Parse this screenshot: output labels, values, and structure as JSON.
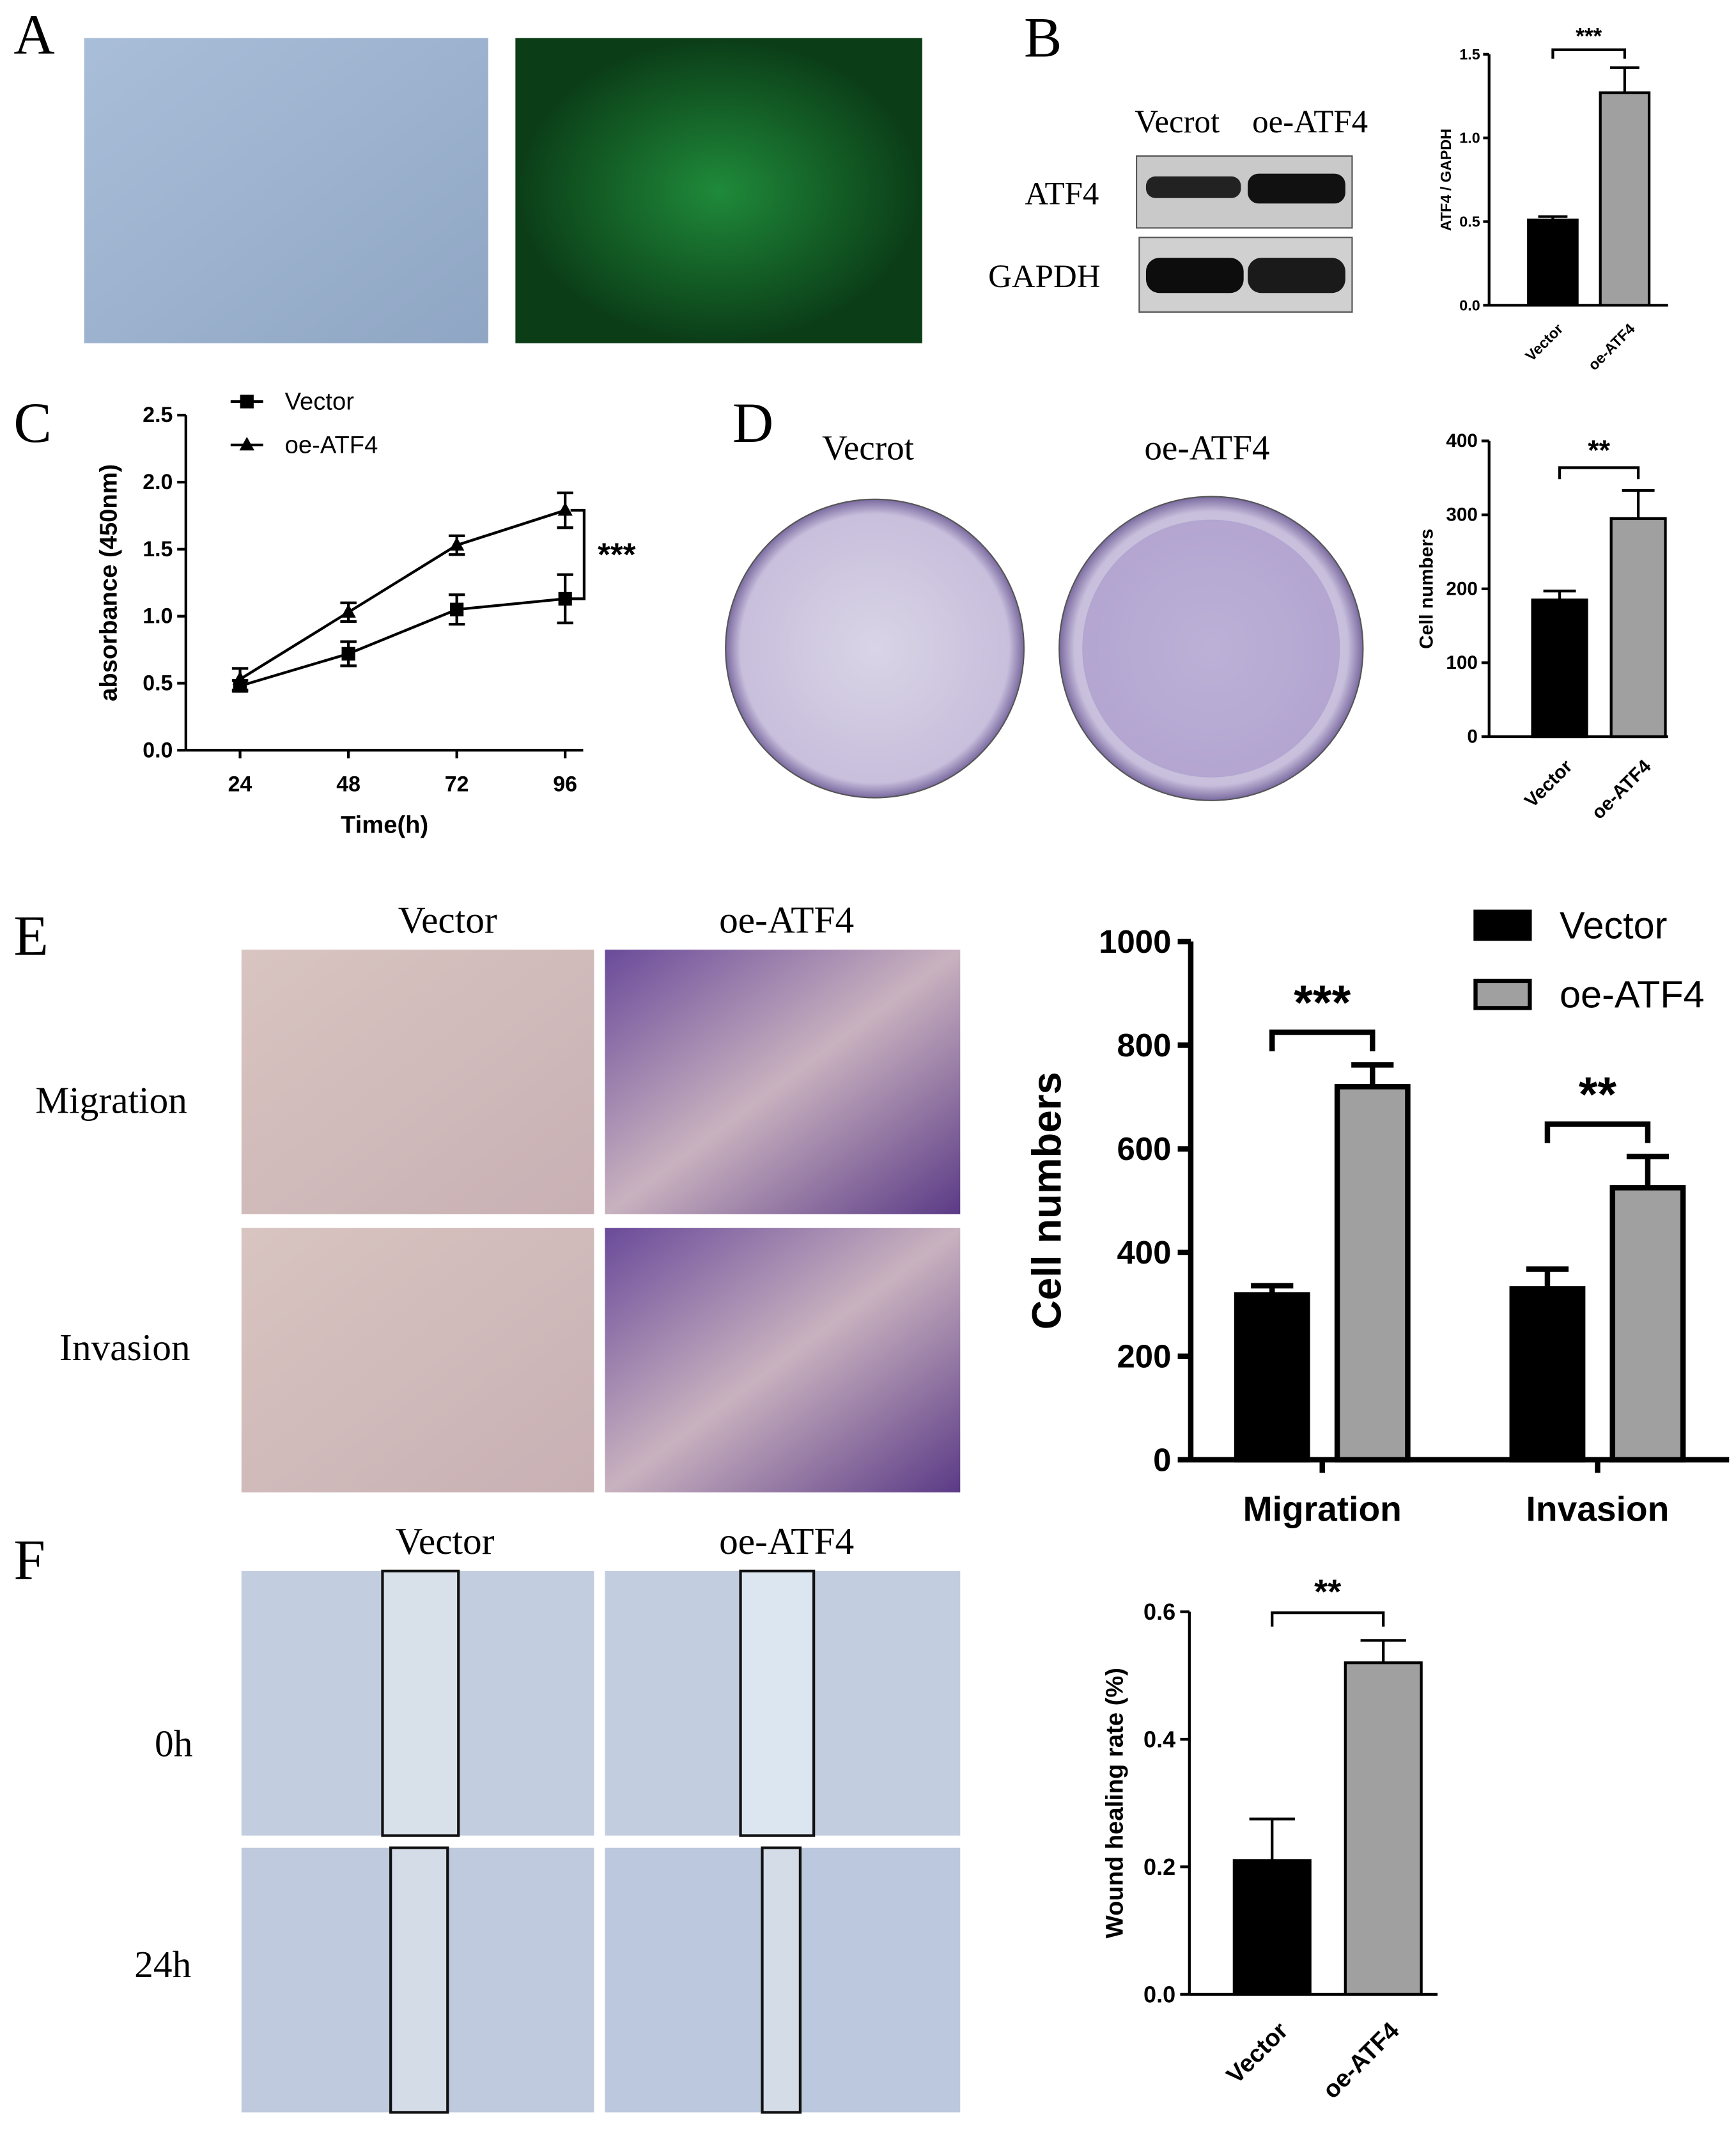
{
  "figure": {
    "panel_letters": [
      "A",
      "B",
      "C",
      "D",
      "E",
      "F"
    ],
    "B": {
      "columns": [
        "Vecrot",
        "oe-ATF4"
      ],
      "rows": [
        "ATF4",
        "GAPDH"
      ]
    },
    "D": {
      "columns": [
        "Vecrot",
        "oe-ATF4"
      ]
    },
    "E": {
      "columns": [
        "Vector",
        "oe-ATF4"
      ],
      "rows": [
        "Migration",
        "Invasion"
      ]
    },
    "F": {
      "columns": [
        "Vector",
        "oe-ATF4"
      ],
      "rows": [
        "0h",
        "24h"
      ]
    }
  },
  "chart_data": [
    {
      "type": "bar",
      "ylabel": "ATF4 / GAPDH",
      "categories": [
        "Vector",
        "oe-ATF4"
      ],
      "values": [
        0.51,
        1.27
      ],
      "errors": [
        0.02,
        0.15
      ],
      "colors": [
        "#000000",
        "#a0a0a0"
      ],
      "ylim": [
        0,
        1.5
      ],
      "yticks": [
        {
          "value": 0,
          "label": "0.0"
        },
        0.5,
        {
          "value": 1,
          "label": "1.0"
        },
        1.5
      ],
      "annotation": "***"
    },
    {
      "type": "line",
      "xlabel": "Time(h)",
      "ylabel": "absorbance (450nm)",
      "x": [
        24,
        48,
        72,
        96
      ],
      "xlim": [
        12,
        100
      ],
      "xticks": [
        24,
        48,
        72,
        96
      ],
      "ylim": [
        0,
        2.5
      ],
      "yticks": [
        {
          "value": 0,
          "label": "0.0"
        },
        0.5,
        {
          "value": 1,
          "label": "1.0"
        },
        1.5,
        {
          "value": 2,
          "label": "2.0"
        },
        2.5
      ],
      "series": [
        {
          "name": "Vector",
          "color": "#000000",
          "marker": "square",
          "values": [
            0.48,
            0.72,
            1.05,
            1.13
          ],
          "errors": [
            0.04,
            0.09,
            0.11,
            0.18
          ]
        },
        {
          "name": "oe-ATF4",
          "color": "#000000",
          "marker": "triangle",
          "values": [
            0.53,
            1.03,
            1.53,
            1.79
          ],
          "errors": [
            0.08,
            0.07,
            0.07,
            0.13
          ]
        }
      ],
      "annotation": "***"
    },
    {
      "type": "bar",
      "ylabel": "Cell numbers",
      "categories": [
        "Vector",
        "oe-ATF4"
      ],
      "values": [
        185,
        295
      ],
      "errors": [
        12,
        38
      ],
      "colors": [
        "#000000",
        "#a0a0a0"
      ],
      "ylim": [
        0,
        400
      ],
      "yticks": [
        0,
        100,
        200,
        300,
        400
      ],
      "annotation": "**"
    },
    {
      "type": "grouped_bar",
      "ylabel": "Cell numbers",
      "categories": [
        "Migration",
        "Invasion"
      ],
      "series": [
        {
          "name": "Vector",
          "color": "#000000",
          "values": [
            318,
            330
          ],
          "errors": [
            18,
            38
          ]
        },
        {
          "name": "oe-ATF4",
          "color": "#a0a0a0",
          "values": [
            720,
            525
          ],
          "errors": [
            42,
            60
          ]
        }
      ],
      "ylim": [
        0,
        1000
      ],
      "yticks": [
        0,
        200,
        400,
        600,
        800,
        1000
      ],
      "annotations": [
        "***",
        "**"
      ]
    },
    {
      "type": "bar",
      "ylabel": "Wound healing rate (%)",
      "categories": [
        "Vector",
        "oe-ATF4"
      ],
      "values": [
        0.21,
        0.52
      ],
      "errors": [
        0.065,
        0.035
      ],
      "colors": [
        "#000000",
        "#a0a0a0"
      ],
      "ylim": [
        0,
        0.6
      ],
      "yticks": [
        {
          "value": 0,
          "label": "0.0"
        },
        0.2,
        0.4,
        0.6
      ],
      "annotation": "**"
    }
  ]
}
